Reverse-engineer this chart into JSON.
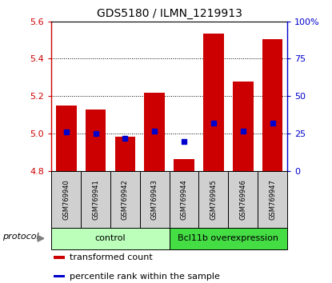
{
  "title": "GDS5180 / ILMN_1219913",
  "samples": [
    "GSM769940",
    "GSM769941",
    "GSM769942",
    "GSM769943",
    "GSM769944",
    "GSM769945",
    "GSM769946",
    "GSM769947"
  ],
  "bar_tops": [
    5.15,
    5.13,
    4.985,
    5.22,
    4.865,
    5.535,
    5.28,
    5.505
  ],
  "bar_bottom": 4.8,
  "percentile_ranks": [
    26,
    25,
    22,
    27,
    20,
    32,
    27,
    32
  ],
  "ylim": [
    4.8,
    5.6
  ],
  "yticks_left": [
    4.8,
    5.0,
    5.2,
    5.4,
    5.6
  ],
  "yticks_right": [
    0,
    25,
    50,
    75,
    100
  ],
  "bar_color": "#cc0000",
  "blue_color": "#0000cc",
  "bar_width": 0.7,
  "groups": [
    {
      "label": "control",
      "indices": [
        0,
        1,
        2,
        3
      ],
      "color": "#bbffbb"
    },
    {
      "label": "Bcl11b overexpression",
      "indices": [
        4,
        5,
        6,
        7
      ],
      "color": "#44dd44"
    }
  ],
  "protocol_label": "protocol",
  "legend_items": [
    {
      "label": "transformed count",
      "color": "#cc0000"
    },
    {
      "label": "percentile rank within the sample",
      "color": "#0000cc"
    }
  ],
  "title_fontsize": 10,
  "tick_fontsize": 8,
  "sample_fontsize": 6,
  "group_fontsize": 8,
  "legend_fontsize": 8
}
